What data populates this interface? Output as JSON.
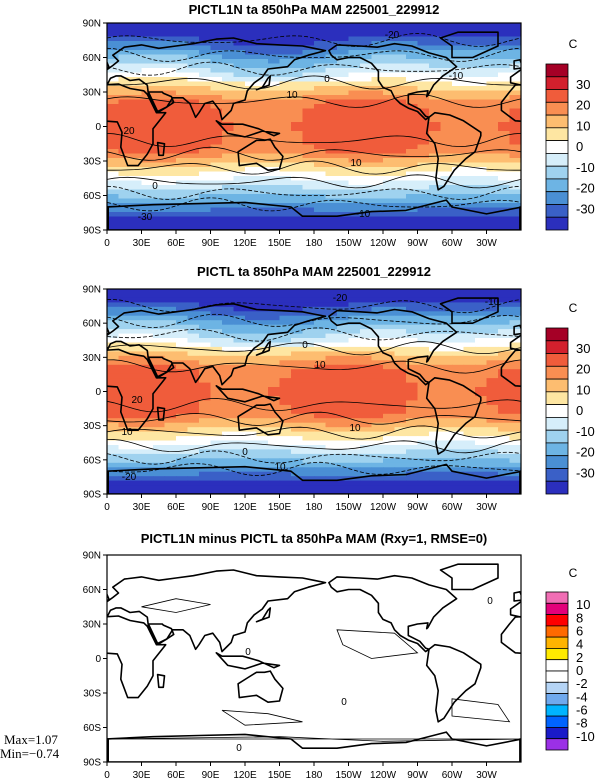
{
  "panels": [
    {
      "title": "PICTL1N ta 850hPa MAM 225001_229912",
      "colorbar_unit": "C",
      "colorbar_labels": [
        "30",
        "20",
        "10",
        "0",
        "-10",
        "-20",
        "-30"
      ],
      "colorbar_colors": [
        "#a50026",
        "#d3202d",
        "#f05c3b",
        "#f98e52",
        "#fdbd70",
        "#fee6a2",
        "#ffffff",
        "#d6eefa",
        "#9fd2ef",
        "#6db4e4",
        "#4a8fd4",
        "#3a60c7",
        "#2b2fbd"
      ],
      "contour_labels": [
        "-20",
        "-10",
        "0",
        "10",
        "20",
        "10",
        "0",
        "-10",
        "-30"
      ],
      "field": "full"
    },
    {
      "title": "PICTL ta 850hPa MAM 225001_229912",
      "colorbar_unit": "C",
      "colorbar_labels": [
        "30",
        "20",
        "10",
        "0",
        "-10",
        "-20",
        "-30"
      ],
      "colorbar_colors": [
        "#a50026",
        "#d3202d",
        "#f05c3b",
        "#f98e52",
        "#fdbd70",
        "#fee6a2",
        "#ffffff",
        "#d6eefa",
        "#9fd2ef",
        "#6db4e4",
        "#4a8fd4",
        "#3a60c7",
        "#2b2fbd"
      ],
      "contour_labels": [
        "-20",
        "-10",
        "0",
        "10",
        "20",
        "10",
        "10",
        "0",
        "10",
        "-20"
      ],
      "field": "full"
    },
    {
      "title": "PICTL1N minus PICTL ta 850hPa MAM (Rxy=1, RMSE=0)",
      "colorbar_unit": "C",
      "colorbar_labels": [
        "10",
        "8",
        "6",
        "4",
        "2",
        "0",
        "-2",
        "-4",
        "-6",
        "-8",
        "-10"
      ],
      "colorbar_colors": [
        "#f06eb4",
        "#e3007a",
        "#ff0000",
        "#ff6a00",
        "#ffb400",
        "#ffea00",
        "#ffffff",
        "#ffffff",
        "#b5d4f5",
        "#6fa9ee",
        "#00b4ff",
        "#0064ff",
        "#1a1ac8",
        "#9b30e6"
      ],
      "contour_labels": [
        "0",
        "0",
        "0",
        "0"
      ],
      "field": "diff",
      "stats": {
        "max": "Max=1.07",
        "min": "Min=−0.74"
      }
    }
  ],
  "lat_ticks": [
    "90N",
    "60N",
    "30N",
    "0",
    "30S",
    "60S",
    "90S"
  ],
  "lon_ticks": [
    "0",
    "30E",
    "60E",
    "90E",
    "120E",
    "150E",
    "180",
    "150W",
    "120W",
    "90W",
    "60W",
    "30W"
  ]
}
